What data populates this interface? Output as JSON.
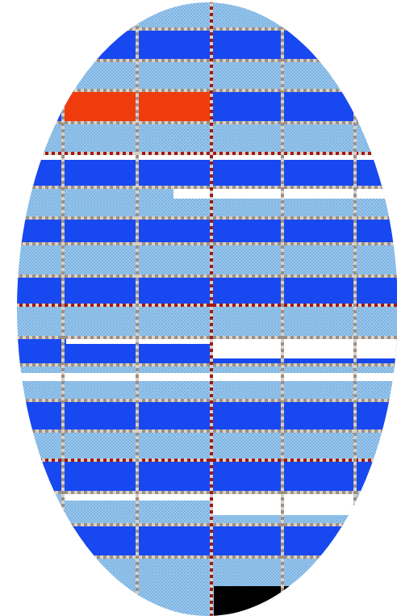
{
  "colors": {
    "background": "#ffffff",
    "dark_blue": "#1848f0",
    "light_blue": "#94c8f0",
    "stipple": "#3a5890",
    "white": "#ffffff",
    "red": "#f03c0c",
    "black": "#000000",
    "grid_stitch": "#9a9088",
    "grid_light": "#d8d0c8",
    "rule_red": "#a01818"
  },
  "bands": [
    {
      "fill": "light_blue"
    },
    {
      "fill": "dark_blue"
    },
    {
      "fill": "light_blue"
    },
    {
      "fill": "dark_blue"
    },
    {
      "fill": "light_blue"
    },
    {
      "fill": "dark_blue"
    },
    {
      "fill": "light_blue"
    },
    {
      "fill": "dark_blue"
    },
    {
      "fill": "light_blue"
    },
    {
      "fill": "dark_blue"
    },
    {
      "fill": "light_blue"
    },
    {
      "fill": "dark_blue"
    },
    {
      "fill": "light_blue"
    },
    {
      "fill": "dark_blue"
    },
    {
      "fill": "light_blue"
    },
    {
      "fill": "dark_blue"
    },
    {
      "fill": "light_blue"
    },
    {
      "fill": "dark_blue"
    },
    {
      "fill": "light_blue"
    }
  ]
}
